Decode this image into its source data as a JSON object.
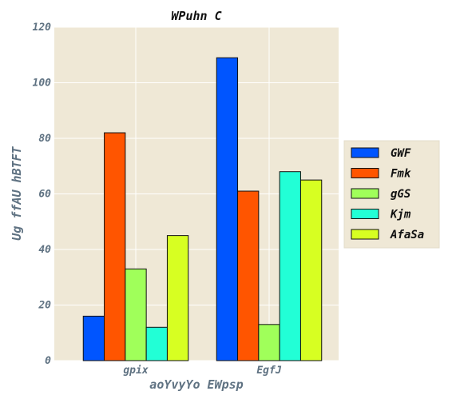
{
  "chart_data": {
    "type": "bar",
    "title": "WPuhn C",
    "xlabel": "aoYvyYo EWpsp",
    "ylabel": "Ug ffAU hBTFT",
    "categories": [
      "gpix",
      "EgfJ"
    ],
    "ylim": [
      0,
      120
    ],
    "yticks": [
      0,
      20,
      40,
      60,
      80,
      100,
      120
    ],
    "grid": true,
    "legend_position": "right",
    "background": "#efe8d6",
    "series": [
      {
        "name": "GWF",
        "color": "#0055ff",
        "values": [
          16,
          109
        ]
      },
      {
        "name": "Fmk",
        "color": "#ff5500",
        "values": [
          82,
          61
        ]
      },
      {
        "name": "gGS",
        "color": "#a0ff5a",
        "values": [
          33,
          13
        ]
      },
      {
        "name": "Kjm",
        "color": "#22ffd6",
        "values": [
          12,
          68
        ]
      },
      {
        "name": "AfaSa",
        "color": "#d7ff22",
        "values": [
          45,
          65
        ]
      }
    ]
  }
}
